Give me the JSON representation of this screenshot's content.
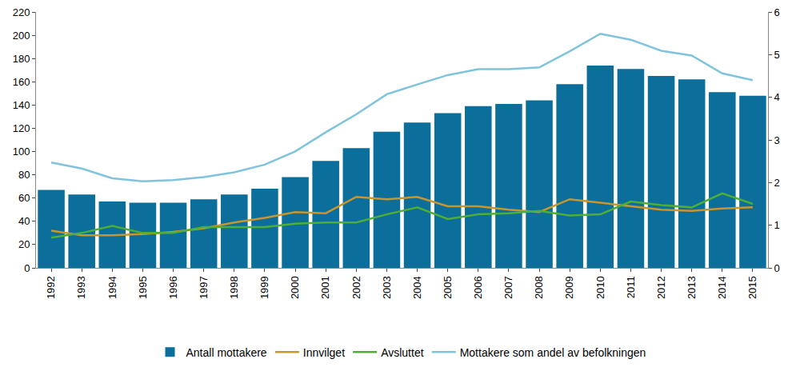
{
  "chart_data": {
    "type": "bar",
    "categories": [
      "1992",
      "1993",
      "1994",
      "1995",
      "1996",
      "1997",
      "1998",
      "1999",
      "2000",
      "2001",
      "2002",
      "2003",
      "2004",
      "2005",
      "2006",
      "2007",
      "2008",
      "2009",
      "2010",
      "2011",
      "2012",
      "2013",
      "2014",
      "2015"
    ],
    "series": [
      {
        "name": "Antall mottakere",
        "type": "bar",
        "color": "#0b6e9b",
        "values": [
          67,
          63,
          57,
          56,
          56,
          59,
          63,
          68,
          78,
          92,
          103,
          117,
          125,
          133,
          139,
          141,
          144,
          158,
          174,
          171,
          165,
          162,
          151,
          148
        ]
      },
      {
        "name": "Innvilget",
        "type": "line",
        "color": "#c8962a",
        "values": [
          32,
          28,
          28,
          29,
          31,
          34,
          39,
          43,
          48,
          47,
          61,
          59,
          61,
          53,
          53,
          50,
          48,
          59,
          56,
          53,
          50,
          49,
          51,
          52
        ]
      },
      {
        "name": "Avsluttet",
        "type": "line",
        "color": "#4fae34",
        "values": [
          26,
          30,
          36,
          30,
          30,
          35,
          35,
          35,
          38,
          39,
          39,
          46,
          52,
          42,
          46,
          47,
          49,
          45,
          46,
          57,
          54,
          52,
          64,
          55
        ]
      },
      {
        "name": "Mottakere som andel av befolkningen",
        "type": "line",
        "color": "#7fc3dd",
        "axis": "y2",
        "values": [
          2.47,
          2.33,
          2.1,
          2.03,
          2.06,
          2.13,
          2.24,
          2.42,
          2.73,
          3.18,
          3.6,
          4.07,
          4.3,
          4.52,
          4.66,
          4.66,
          4.7,
          5.08,
          5.49,
          5.35,
          5.09,
          4.98,
          4.56,
          4.4
        ]
      }
    ],
    "ylim": [
      0,
      220
    ],
    "yticks": [
      0,
      20,
      40,
      60,
      80,
      100,
      120,
      140,
      160,
      180,
      200,
      220
    ],
    "y2lim": [
      0,
      6
    ],
    "y2ticks": [
      0,
      1,
      2,
      3,
      4,
      5,
      6
    ],
    "grid": false,
    "legend": "bottom"
  }
}
